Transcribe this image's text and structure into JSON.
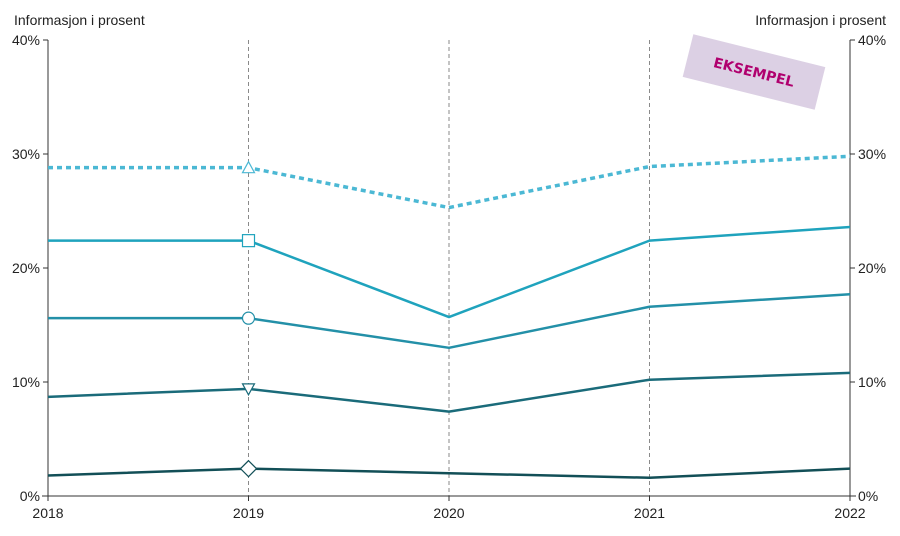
{
  "chart_data": {
    "type": "line",
    "y_axis_title_left": "Informasjon i prosent",
    "y_axis_title_right": "Informasjon i prosent",
    "x": [
      "2018",
      "2019",
      "2020",
      "2021",
      "2022"
    ],
    "y_ticks": [
      0,
      10,
      20,
      30,
      40
    ],
    "y_tick_labels": [
      "0%",
      "10%",
      "20%",
      "30%",
      "40%"
    ],
    "ylim": [
      0,
      40
    ],
    "grid": "vertical dashed lines at each year",
    "watermark": "EKSEMPEL",
    "series": [
      {
        "values": [
          28.8,
          28.8,
          25.3,
          28.9,
          29.8
        ],
        "color": "#4bb8d4",
        "dashed": true,
        "marker": "triangle"
      },
      {
        "values": [
          22.4,
          22.4,
          15.7,
          22.4,
          23.6
        ],
        "color": "#1fa3bd",
        "dashed": false,
        "marker": "square"
      },
      {
        "values": [
          15.6,
          15.6,
          13.0,
          16.6,
          17.7
        ],
        "color": "#2390a8",
        "dashed": false,
        "marker": "circle"
      },
      {
        "values": [
          8.7,
          9.4,
          7.4,
          10.2,
          10.8
        ],
        "color": "#1a6b7a",
        "dashed": false,
        "marker": "triangle-down"
      },
      {
        "values": [
          1.8,
          2.4,
          2.0,
          1.6,
          2.4
        ],
        "color": "#124f57",
        "dashed": false,
        "marker": "diamond"
      }
    ]
  }
}
